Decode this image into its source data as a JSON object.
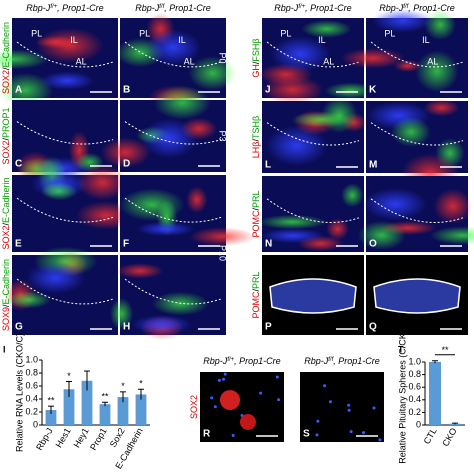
{
  "headers": [
    {
      "gene": "Rbp-J",
      "allele": "f/+",
      "driver": ", Prop1-Cre"
    },
    {
      "gene": "Rbp-J",
      "allele": "f/f",
      "driver": ", Prop1-Cre"
    },
    {
      "gene": "Rbp-J",
      "allele": "f/+",
      "driver": ", Prop1-Cre"
    },
    {
      "gene": "Rbp-J",
      "allele": "f/f",
      "driver": ", Prop1-Cre"
    },
    {
      "gene": "Rbp-J",
      "allele": "f/+",
      "driver": ", Prop1-Cre"
    },
    {
      "gene": "Rbp-J",
      "allele": "f/f",
      "driver": ", Prop1-Cre"
    }
  ],
  "panels": [
    {
      "letter": "A",
      "stain": [
        "SOX2",
        "/",
        "E-Cadherin"
      ],
      "regions": [
        "PL",
        "IL",
        "AL"
      ]
    },
    {
      "letter": "B",
      "regions": [
        "PL",
        "IL",
        "AL"
      ]
    },
    {
      "letter": "C",
      "stain": [
        "SOX2",
        "/",
        "PROP1"
      ]
    },
    {
      "letter": "D"
    },
    {
      "letter": "E",
      "stain": [
        "SOX2",
        "/",
        "E-Cadherin"
      ]
    },
    {
      "letter": "F"
    },
    {
      "letter": "G",
      "stain": [
        "SOX9",
        "/",
        "E-Cadherin"
      ]
    },
    {
      "letter": "H"
    },
    {
      "letter": "J",
      "stain": [
        "GH",
        "/",
        "FSHβ"
      ],
      "regions": [
        "PL",
        "IL",
        "AL"
      ]
    },
    {
      "letter": "K",
      "regions": [
        "PL",
        "IL",
        "AL"
      ]
    },
    {
      "letter": "L",
      "stain": [
        "LHβ",
        "/",
        "TSHβ"
      ]
    },
    {
      "letter": "M"
    },
    {
      "letter": "N",
      "stain": [
        "POMC",
        "/",
        "PRL"
      ]
    },
    {
      "letter": "O"
    },
    {
      "letter": "P",
      "stain": [
        "POMC",
        "/",
        "PRL"
      ]
    },
    {
      "letter": "Q"
    },
    {
      "letter": "R",
      "stain": [
        "SOX2"
      ]
    },
    {
      "letter": "S"
    }
  ],
  "time_labels": [
    "P0",
    "P3",
    "P10"
  ],
  "chart_data": [
    {
      "type": "bar",
      "letter": "I",
      "y_label": "Relative RNA Levels (CKO/C)",
      "categories": [
        "Rbp-J",
        "Hes1",
        "Hey1",
        "Prop1",
        "Sox2",
        "E-Cadherin"
      ],
      "values": [
        0.23,
        0.55,
        0.68,
        0.32,
        0.43,
        0.47
      ],
      "errors": [
        0.06,
        0.12,
        0.15,
        0.03,
        0.08,
        0.08
      ],
      "annotations": [
        "**",
        "*",
        null,
        "**",
        "*",
        "*"
      ],
      "color": "#5b9bd5",
      "ylim": [
        0,
        1
      ],
      "yticks": [
        0,
        0.2,
        0.4,
        0.6,
        0.8,
        {
          "value": 1,
          "label": "1.0"
        }
      ]
    },
    {
      "type": "bar",
      "letter": "T",
      "y_label": "Relative Pituitary Spheres (C/CKO)",
      "categories": [
        "CTL",
        "CKO"
      ],
      "values": [
        1,
        0.02
      ],
      "errors": [
        0.02,
        0.01
      ],
      "annotations": [
        "**"
      ],
      "color": "#5b9bd5",
      "ylim": [
        0,
        1
      ],
      "yticks": [
        0,
        0.2,
        0.4,
        0.6,
        0.8,
        {
          "value": 1,
          "label": "1.0"
        }
      ]
    }
  ]
}
